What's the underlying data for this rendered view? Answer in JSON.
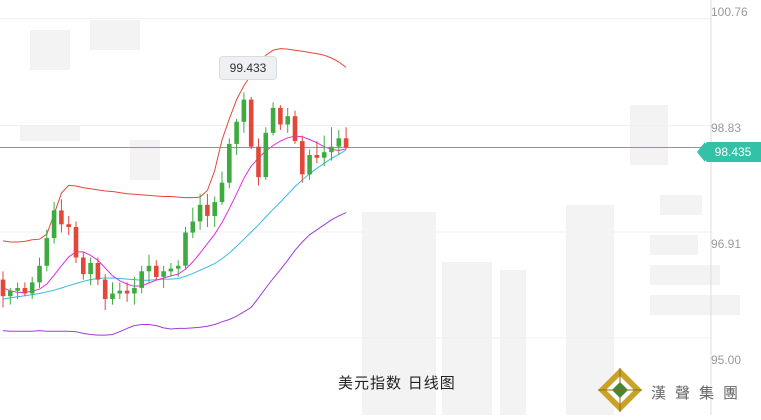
{
  "caption": "美元指数  日线图",
  "brand": {
    "name": "漢聲集團",
    "colors": {
      "gold": "#c9a227",
      "green": "#3a8a3a"
    }
  },
  "colors": {
    "up": "#3dab3f",
    "down": "#e2473a",
    "bb_band": "#e2473a",
    "bb_lower": "#a23bd6",
    "ma_fast": "#e02ee0",
    "ma_slow": "#38b9e0",
    "price_line": "#33c1a7"
  },
  "chart_data": {
    "type": "candlestick",
    "title": "美元指数  日线图",
    "y_ticks": [
      "100.76",
      "98.83",
      "96.91",
      "95.00"
    ],
    "ylim": [
      94.6,
      100.88
    ],
    "current_price": "98.435",
    "high_label": "99.433",
    "candles": [
      [
        96.05,
        96.2,
        95.55,
        95.75
      ],
      [
        95.75,
        95.9,
        95.6,
        95.85
      ],
      [
        95.85,
        96.0,
        95.7,
        95.9
      ],
      [
        95.9,
        96.0,
        95.75,
        95.8
      ],
      [
        95.8,
        96.1,
        95.7,
        96.0
      ],
      [
        96.0,
        96.45,
        95.9,
        96.3
      ],
      [
        96.3,
        96.95,
        96.2,
        96.8
      ],
      [
        96.8,
        97.45,
        96.7,
        97.3
      ],
      [
        97.3,
        97.5,
        96.9,
        97.05
      ],
      [
        97.05,
        97.2,
        96.85,
        97.0
      ],
      [
        97.0,
        97.1,
        96.35,
        96.45
      ],
      [
        96.45,
        96.55,
        96.05,
        96.15
      ],
      [
        96.15,
        96.45,
        95.95,
        96.35
      ],
      [
        96.35,
        96.45,
        95.95,
        96.05
      ],
      [
        96.05,
        96.15,
        95.5,
        95.7
      ],
      [
        95.7,
        96.0,
        95.6,
        95.8
      ],
      [
        95.8,
        96.0,
        95.7,
        95.85
      ],
      [
        95.85,
        96.0,
        95.65,
        95.8
      ],
      [
        95.8,
        96.1,
        95.6,
        95.9
      ],
      [
        95.9,
        96.3,
        95.8,
        96.2
      ],
      [
        96.2,
        96.5,
        96.0,
        96.3
      ],
      [
        96.3,
        96.4,
        96.05,
        96.1
      ],
      [
        96.1,
        96.3,
        95.9,
        96.2
      ],
      [
        96.2,
        96.35,
        96.1,
        96.25
      ],
      [
        96.25,
        96.4,
        96.1,
        96.3
      ],
      [
        96.3,
        97.0,
        96.25,
        96.9
      ],
      [
        96.9,
        97.35,
        96.8,
        97.1
      ],
      [
        97.1,
        97.6,
        96.95,
        97.4
      ],
      [
        97.4,
        97.6,
        97.0,
        97.2
      ],
      [
        97.2,
        97.55,
        97.0,
        97.45
      ],
      [
        97.45,
        98.0,
        97.4,
        97.8
      ],
      [
        97.8,
        98.6,
        97.7,
        98.5
      ],
      [
        98.5,
        98.95,
        98.3,
        98.9
      ],
      [
        98.9,
        99.43,
        98.7,
        99.3
      ],
      [
        99.3,
        99.35,
        98.4,
        98.45
      ],
      [
        98.45,
        98.6,
        97.75,
        97.9
      ],
      [
        97.9,
        98.8,
        97.85,
        98.7
      ],
      [
        98.7,
        99.25,
        98.65,
        99.15
      ],
      [
        99.15,
        99.2,
        98.75,
        98.85
      ],
      [
        98.85,
        99.15,
        98.7,
        99.0
      ],
      [
        99.0,
        99.1,
        98.5,
        98.55
      ],
      [
        98.55,
        98.65,
        97.8,
        97.95
      ],
      [
        97.95,
        98.4,
        97.85,
        98.3
      ],
      [
        98.3,
        98.55,
        98.15,
        98.25
      ],
      [
        98.25,
        98.65,
        98.1,
        98.35
      ],
      [
        98.35,
        98.8,
        98.2,
        98.45
      ],
      [
        98.45,
        98.75,
        98.3,
        98.6
      ],
      [
        98.6,
        98.8,
        98.4,
        98.435
      ]
    ],
    "bb_upper": [
      96.75,
      96.73,
      96.73,
      96.74,
      96.77,
      96.78,
      96.87,
      97.23,
      97.61,
      97.75,
      97.74,
      97.71,
      97.69,
      97.67,
      97.65,
      97.64,
      97.62,
      97.6,
      97.59,
      97.58,
      97.57,
      97.56,
      97.55,
      97.55,
      97.54,
      97.53,
      97.53,
      97.54,
      97.66,
      98.02,
      98.57,
      98.95,
      99.3,
      99.55,
      99.75,
      99.95,
      100.1,
      100.19,
      100.22,
      100.21,
      100.19,
      100.17,
      100.15,
      100.13,
      100.1,
      100.05,
      99.98,
      99.88
    ],
    "bb_lower": [
      95.13,
      95.12,
      95.12,
      95.12,
      95.12,
      95.13,
      95.12,
      95.12,
      95.12,
      95.12,
      95.11,
      95.08,
      95.06,
      95.05,
      95.05,
      95.06,
      95.11,
      95.17,
      95.22,
      95.24,
      95.24,
      95.22,
      95.18,
      95.16,
      95.17,
      95.17,
      95.18,
      95.19,
      95.21,
      95.24,
      95.29,
      95.33,
      95.39,
      95.47,
      95.55,
      95.72,
      95.9,
      96.07,
      96.23,
      96.4,
      96.58,
      96.73,
      96.86,
      96.95,
      97.04,
      97.13,
      97.2,
      97.26
    ],
    "ma_fast": [
      95.9,
      95.85,
      95.82,
      95.82,
      95.84,
      95.88,
      95.97,
      96.13,
      96.3,
      96.46,
      96.55,
      96.55,
      96.49,
      96.4,
      96.26,
      96.12,
      96.03,
      95.97,
      95.93,
      95.94,
      95.99,
      96.04,
      96.08,
      96.12,
      96.15,
      96.24,
      96.37,
      96.53,
      96.7,
      96.87,
      97.08,
      97.33,
      97.6,
      97.88,
      98.1,
      98.25,
      98.37,
      98.47,
      98.55,
      98.61,
      98.64,
      98.63,
      98.58,
      98.52,
      98.45,
      98.4,
      98.38,
      98.41
    ],
    "ma_slow": [
      95.7,
      95.72,
      95.74,
      95.76,
      95.78,
      95.8,
      95.83,
      95.86,
      95.9,
      95.94,
      95.98,
      96.02,
      96.05,
      96.07,
      96.08,
      96.08,
      96.07,
      96.06,
      96.05,
      96.04,
      96.04,
      96.05,
      96.06,
      96.06,
      96.07,
      96.11,
      96.16,
      96.22,
      96.28,
      96.34,
      96.43,
      96.53,
      96.65,
      96.78,
      96.91,
      97.04,
      97.18,
      97.32,
      97.45,
      97.59,
      97.73,
      97.85,
      97.96,
      98.06,
      98.15,
      98.24,
      98.31,
      98.39
    ]
  }
}
